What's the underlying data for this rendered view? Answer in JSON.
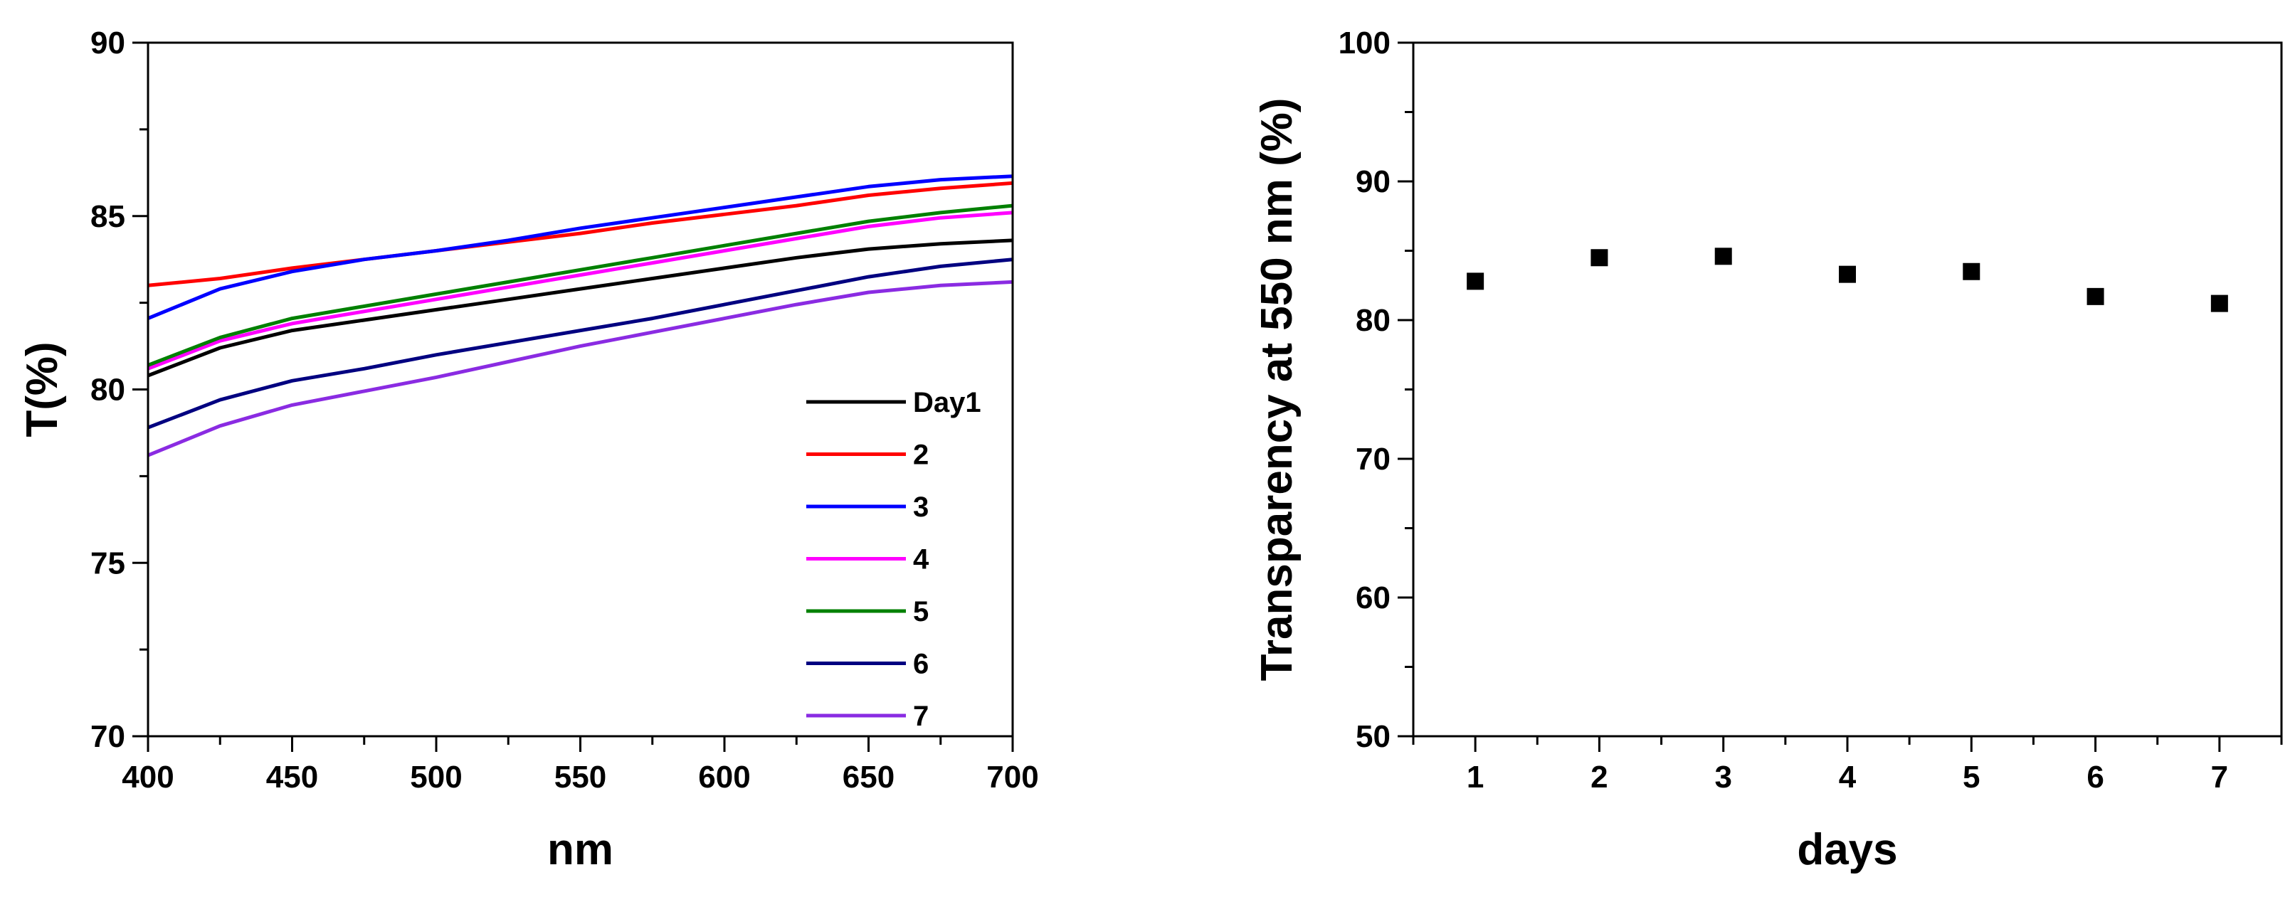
{
  "chart_data": [
    {
      "type": "line",
      "title": "",
      "xlabel": "nm",
      "ylabel": "T(%)",
      "xlim": [
        400,
        700
      ],
      "ylim": [
        70,
        90
      ],
      "xticks": [
        "400",
        "450",
        "500",
        "550",
        "600",
        "650",
        "700"
      ],
      "yticks": [
        "70",
        "75",
        "80",
        "85",
        "90"
      ],
      "legend_position": "bottom-right",
      "x": [
        400,
        425,
        450,
        475,
        500,
        525,
        550,
        575,
        600,
        625,
        650,
        675,
        700
      ],
      "series": [
        {
          "name": "Day1",
          "color": "#000000",
          "values": [
            80.4,
            81.2,
            81.7,
            82.0,
            82.3,
            82.6,
            82.9,
            83.2,
            83.5,
            83.8,
            84.05,
            84.2,
            84.3
          ]
        },
        {
          "name": "2",
          "color": "#ff0000",
          "values": [
            83.0,
            83.2,
            83.5,
            83.75,
            84.0,
            84.25,
            84.5,
            84.8,
            85.05,
            85.3,
            85.6,
            85.8,
            85.95
          ]
        },
        {
          "name": "3",
          "color": "#0000ff",
          "values": [
            82.05,
            82.9,
            83.4,
            83.75,
            84.0,
            84.3,
            84.65,
            84.95,
            85.25,
            85.55,
            85.85,
            86.05,
            86.15
          ]
        },
        {
          "name": "4",
          "color": "#ff00ff",
          "values": [
            80.6,
            81.4,
            81.9,
            82.25,
            82.6,
            82.95,
            83.3,
            83.65,
            84.0,
            84.35,
            84.7,
            84.95,
            85.1
          ]
        },
        {
          "name": "5",
          "color": "#008000",
          "values": [
            80.7,
            81.5,
            82.05,
            82.4,
            82.75,
            83.1,
            83.45,
            83.8,
            84.15,
            84.5,
            84.85,
            85.1,
            85.3
          ]
        },
        {
          "name": "6",
          "color": "#000080",
          "values": [
            78.9,
            79.7,
            80.25,
            80.6,
            81.0,
            81.35,
            81.7,
            82.05,
            82.45,
            82.85,
            83.25,
            83.55,
            83.75
          ]
        },
        {
          "name": "7",
          "color": "#8a2be2",
          "values": [
            78.1,
            78.95,
            79.55,
            79.95,
            80.35,
            80.8,
            81.25,
            81.65,
            82.05,
            82.45,
            82.8,
            83.0,
            83.1
          ]
        }
      ]
    },
    {
      "type": "scatter",
      "title": "",
      "xlabel": "days",
      "ylabel": "Transparency at 550 nm (%)",
      "xlim": [
        0.5,
        7.5
      ],
      "ylim": [
        50,
        100
      ],
      "xticks": [
        "1",
        "2",
        "3",
        "4",
        "5",
        "6",
        "7"
      ],
      "yticks": [
        "50",
        "60",
        "70",
        "80",
        "90",
        "100"
      ],
      "x": [
        1,
        2,
        3,
        4,
        5,
        6,
        7
      ],
      "y": [
        82.8,
        84.5,
        84.6,
        83.3,
        83.5,
        81.7,
        81.2
      ],
      "color": "#000000"
    }
  ]
}
